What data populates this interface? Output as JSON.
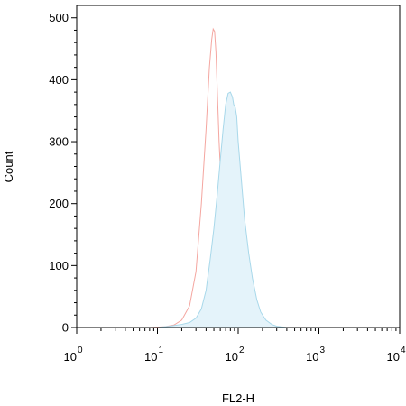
{
  "chart_data": {
    "type": "area",
    "title": "",
    "xlabel": "FL2-H",
    "ylabel": "Count",
    "x_scale": "log",
    "xlim": [
      1,
      10000
    ],
    "ylim": [
      0,
      520
    ],
    "x_ticks": [
      {
        "value": 1,
        "base": "10",
        "exp": "0"
      },
      {
        "value": 10,
        "base": "10",
        "exp": "1"
      },
      {
        "value": 100,
        "base": "10",
        "exp": "2"
      },
      {
        "value": 1000,
        "base": "10",
        "exp": "3"
      },
      {
        "value": 10000,
        "base": "10",
        "exp": "4"
      }
    ],
    "y_ticks": [
      0,
      100,
      200,
      300,
      400,
      500
    ],
    "grid": false,
    "legend": "none",
    "series": [
      {
        "fill": false,
        "line_color": "#f4a6a0",
        "fill_color": "none",
        "x": [
          1,
          8,
          12,
          16,
          20,
          25,
          30,
          35,
          40,
          44,
          47,
          49,
          51,
          53,
          55,
          58,
          62,
          66,
          72,
          80,
          90,
          100,
          115,
          130,
          160,
          200,
          300,
          10000
        ],
        "y": [
          0,
          0,
          1,
          4,
          12,
          35,
          90,
          200,
          320,
          420,
          465,
          482,
          478,
          445,
          385,
          300,
          220,
          150,
          90,
          45,
          20,
          8,
          3,
          1,
          0,
          0,
          0,
          0
        ]
      },
      {
        "fill": true,
        "line_color": "#a8d8ea",
        "fill_color": "#e4f3fa",
        "x": [
          1,
          10,
          14,
          20,
          25,
          30,
          35,
          40,
          45,
          50,
          55,
          60,
          65,
          70,
          75,
          80,
          85,
          88,
          92,
          96,
          100,
          110,
          120,
          135,
          150,
          170,
          190,
          220,
          260,
          300,
          400,
          10000
        ],
        "y": [
          0,
          0,
          2,
          5,
          8,
          15,
          30,
          60,
          110,
          160,
          215,
          270,
          320,
          360,
          378,
          380,
          372,
          360,
          355,
          340,
          300,
          235,
          175,
          120,
          80,
          45,
          25,
          12,
          5,
          2,
          0,
          0
        ]
      }
    ]
  }
}
